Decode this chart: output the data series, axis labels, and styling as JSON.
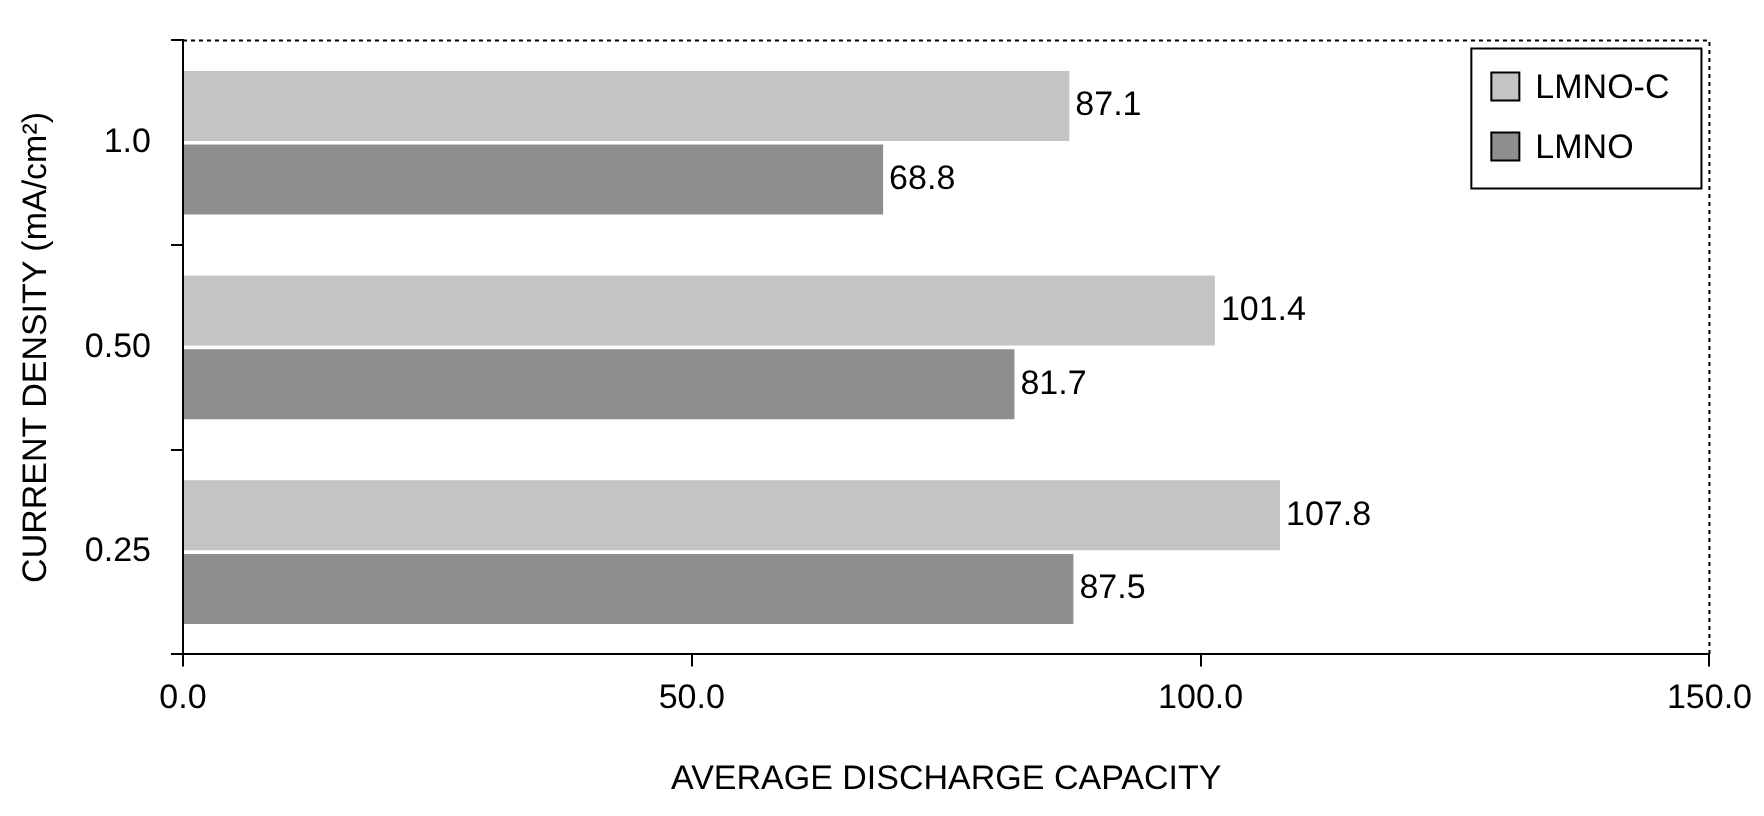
{
  "chart_data": {
    "type": "bar",
    "orientation": "horizontal",
    "xlabel": "AVERAGE DISCHARGE CAPACITY",
    "ylabel": "CURRENT DENSITY (mA/cm²)",
    "categories": [
      "1.0",
      "0.50",
      "0.25"
    ],
    "series": [
      {
        "name": "LMNO-C",
        "color": "#c4c4c4",
        "values": [
          87.1,
          101.4,
          107.8
        ]
      },
      {
        "name": "LMNO",
        "color": "#8e8e8e",
        "values": [
          68.8,
          81.7,
          87.5
        ]
      }
    ],
    "xlim": [
      0,
      150
    ],
    "xticks": [
      {
        "value": 0,
        "label": "0.0"
      },
      {
        "value": 50,
        "label": "50.0"
      },
      {
        "value": 100,
        "label": "100.0"
      },
      {
        "value": 150,
        "label": "150.0"
      }
    ],
    "data_labels": true,
    "legend": "top right",
    "grid": false
  }
}
